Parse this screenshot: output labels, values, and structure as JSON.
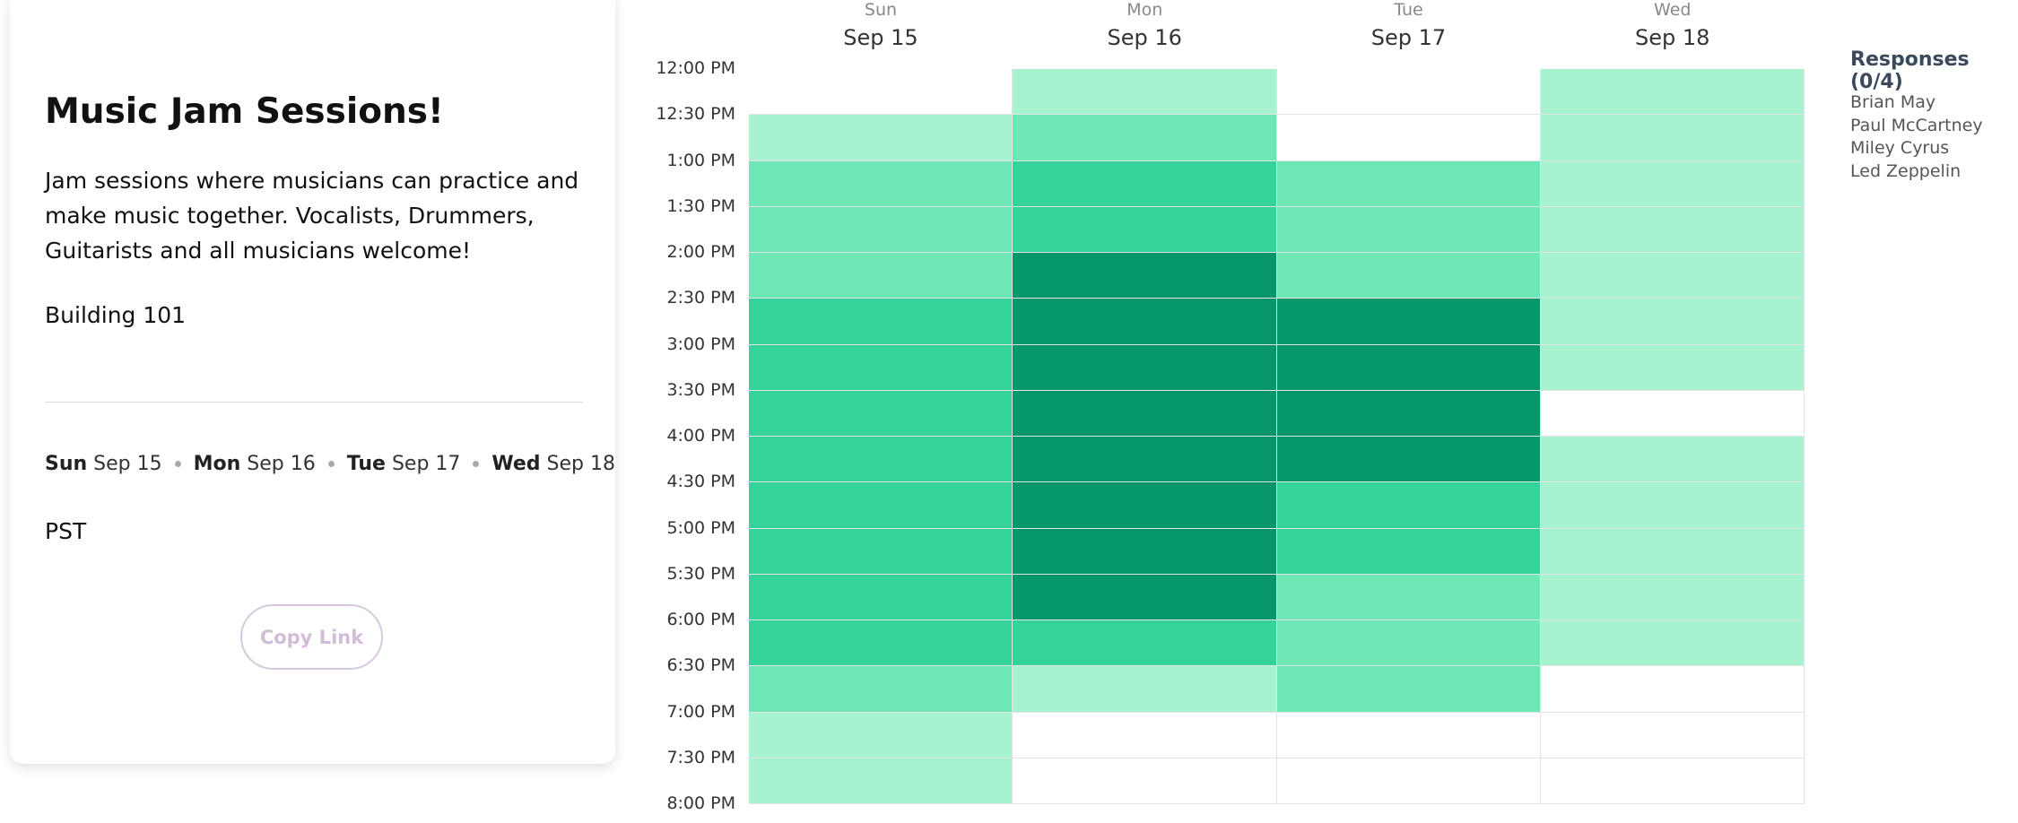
{
  "event": {
    "title": "Music Jam Sessions!",
    "description": "Jam sessions where musicians can practice and make music together. Vocalists, Drummers, Guitarists and all musicians welcome!",
    "location": "Building 101",
    "dates": [
      {
        "weekday": "Sun",
        "date": "Sep 15"
      },
      {
        "weekday": "Mon",
        "date": "Sep 16"
      },
      {
        "weekday": "Tue",
        "date": "Sep 17"
      },
      {
        "weekday": "Wed",
        "date": "Sep 18"
      }
    ],
    "timezone": "PST",
    "button": "Copy Link"
  },
  "heatmap": {
    "days": [
      {
        "weekday": "Sun",
        "date": "Sep 15"
      },
      {
        "weekday": "Mon",
        "date": "Sep 16"
      },
      {
        "weekday": "Tue",
        "date": "Sep 17"
      },
      {
        "weekday": "Wed",
        "date": "Sep 18"
      }
    ],
    "times": [
      "12:00 PM",
      "12:30 PM",
      "1:00 PM",
      "1:30 PM",
      "2:00 PM",
      "2:30 PM",
      "3:00 PM",
      "3:30 PM",
      "4:00 PM",
      "4:30 PM",
      "5:00 PM",
      "5:30 PM",
      "6:00 PM",
      "6:30 PM",
      "7:00 PM",
      "7:30 PM",
      "8:00 PM"
    ],
    "level_colors": [
      "#ffffff",
      "#a7f3d0",
      "#6ee7b7",
      "#34d399",
      "#059669"
    ],
    "levels": [
      [
        0,
        1,
        0,
        1
      ],
      [
        1,
        2,
        0,
        1
      ],
      [
        2,
        3,
        2,
        1
      ],
      [
        2,
        3,
        2,
        1
      ],
      [
        2,
        4,
        2,
        1
      ],
      [
        3,
        4,
        4,
        1
      ],
      [
        3,
        4,
        4,
        1
      ],
      [
        3,
        4,
        4,
        0
      ],
      [
        3,
        4,
        4,
        1
      ],
      [
        3,
        4,
        3,
        1
      ],
      [
        3,
        4,
        3,
        1
      ],
      [
        3,
        4,
        2,
        1
      ],
      [
        3,
        3,
        2,
        1
      ],
      [
        2,
        1,
        2,
        0
      ],
      [
        1,
        0,
        0,
        0
      ],
      [
        1,
        0,
        0,
        0
      ]
    ]
  },
  "responses": {
    "title": "Responses (0/4)",
    "names": [
      "Brian May",
      "Paul McCartney",
      "Miley Cyrus",
      "Led Zeppelin"
    ]
  }
}
